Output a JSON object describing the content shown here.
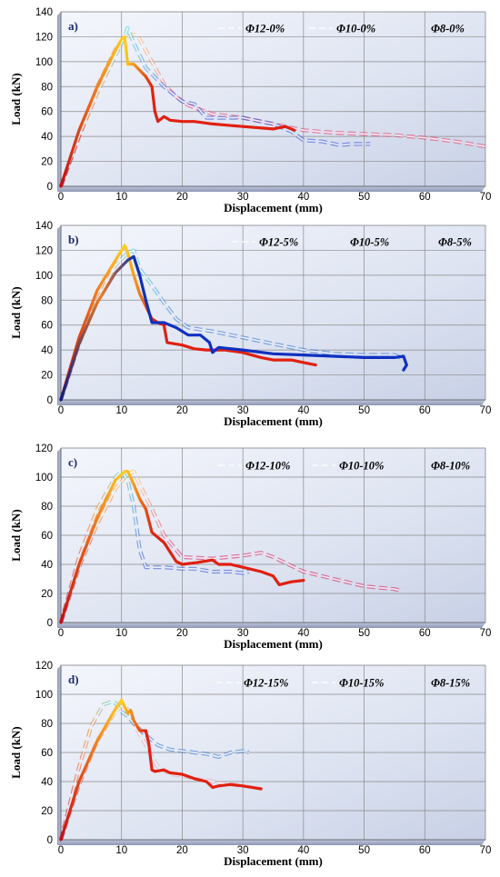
{
  "chart_data": [
    {
      "type": "line",
      "panel_label": "a)",
      "xlabel": "Displacement (mm)",
      "ylabel": "Load (kN)",
      "xlim": [
        0,
        70
      ],
      "ylim": [
        0,
        140
      ],
      "xticks": [
        0,
        10,
        20,
        30,
        40,
        50,
        60,
        70
      ],
      "yticks": [
        0,
        20,
        40,
        60,
        80,
        100,
        120,
        140
      ],
      "grid": true,
      "legend_position": "top-right",
      "series": [
        {
          "name": "Φ12-0%",
          "style": "dashed",
          "color_start": "#c01050",
          "color_peak": "#f0c070",
          "color_end": "#e03a6a",
          "x": [
            0,
            3,
            6,
            9,
            11,
            12,
            13,
            15,
            17,
            19,
            21,
            25,
            30,
            35,
            40,
            45,
            50,
            55,
            60,
            65,
            70
          ],
          "y": [
            0,
            40,
            80,
            110,
            120,
            122,
            118,
            100,
            82,
            72,
            65,
            58,
            55,
            50,
            45,
            43,
            42,
            41,
            39,
            36,
            32
          ]
        },
        {
          "name": "Φ10-0%",
          "style": "dashed",
          "color_start": "#c01050",
          "color_peak": "#40d0d0",
          "color_end": "#3050d0",
          "x": [
            0,
            3,
            6,
            9,
            10.5,
            11,
            12,
            14,
            17,
            20,
            22,
            24,
            26,
            30,
            35,
            38,
            40,
            43,
            46,
            48,
            51
          ],
          "y": [
            0,
            40,
            75,
            105,
            120,
            127,
            115,
            95,
            80,
            68,
            66,
            55,
            55,
            55,
            50,
            44,
            37,
            36,
            33,
            34,
            34
          ]
        },
        {
          "name": "Φ8-0%",
          "style": "solid",
          "color_start": "#c01010",
          "color_peak": "#ffd020",
          "color_end": "#e02010",
          "x": [
            0,
            3,
            6,
            8,
            10,
            10.5,
            11,
            12,
            14,
            15,
            15.5,
            16,
            17,
            18,
            20,
            22,
            25,
            30,
            35,
            37,
            38.5
          ],
          "y": [
            0,
            45,
            80,
            100,
            118,
            120,
            98,
            98,
            88,
            80,
            60,
            52,
            56,
            53,
            52,
            52,
            50,
            48,
            46,
            48,
            45
          ]
        }
      ]
    },
    {
      "type": "line",
      "panel_label": "b)",
      "xlabel": "Displacement (mm)",
      "ylabel": "Load (kN)",
      "xlim": [
        0,
        70
      ],
      "ylim": [
        0,
        140
      ],
      "xticks": [
        0,
        10,
        20,
        30,
        40,
        50,
        60,
        70
      ],
      "yticks": [
        0,
        20,
        40,
        60,
        80,
        100,
        120,
        140
      ],
      "grid": true,
      "legend_position": "top-right",
      "series": [
        {
          "name": "Φ12-5%",
          "style": "dashed",
          "color_start": "#1050c0",
          "color_peak": "#40d0e0",
          "color_end": "#3070d0",
          "x": [
            0,
            3,
            6,
            9,
            11,
            12,
            13,
            15,
            17,
            19,
            21,
            25,
            30,
            35,
            40,
            45,
            50,
            55,
            56
          ],
          "y": [
            0,
            45,
            80,
            108,
            118,
            120,
            105,
            92,
            78,
            65,
            58,
            55,
            50,
            45,
            40,
            37,
            36,
            36,
            34
          ]
        },
        {
          "name": "Φ10-5%",
          "style": "solid",
          "color_start": "#c01010",
          "color_peak": "#ffd020",
          "color_end": "#e02010",
          "x": [
            0,
            3,
            6,
            9,
            10.5,
            11,
            12,
            13,
            14,
            15,
            16,
            17,
            17.5,
            20,
            22,
            24,
            25,
            27,
            30,
            33,
            35,
            38,
            40,
            42
          ],
          "y": [
            0,
            50,
            88,
            112,
            124,
            118,
            100,
            85,
            75,
            65,
            62,
            60,
            46,
            44,
            41,
            40,
            40,
            40,
            38,
            34,
            32,
            32,
            30,
            28
          ]
        },
        {
          "name": "Φ8-5%",
          "style": "solid",
          "color_start": "#101a80",
          "color_peak": "#1030b0",
          "color_end": "#1030c0",
          "x": [
            0,
            3,
            6,
            9,
            11,
            12,
            13,
            14,
            15,
            17,
            19,
            21,
            23,
            24.5,
            25,
            26,
            30,
            35,
            40,
            45,
            50,
            55,
            56.5,
            57,
            56.5
          ],
          "y": [
            0,
            45,
            78,
            102,
            112,
            115,
            100,
            80,
            62,
            62,
            58,
            52,
            52,
            46,
            38,
            42,
            40,
            37,
            36,
            35,
            34,
            34,
            35,
            28,
            24
          ]
        }
      ]
    },
    {
      "type": "line",
      "panel_label": "c)",
      "xlabel": "Displacement (mm)",
      "ylabel": "Load (kN)",
      "xlim": [
        0,
        70
      ],
      "ylim": [
        0,
        120
      ],
      "xticks": [
        0,
        10,
        20,
        30,
        40,
        50,
        60,
        70
      ],
      "yticks": [
        0,
        20,
        40,
        60,
        80,
        100,
        120
      ],
      "grid": true,
      "legend_position": "top-right",
      "series": [
        {
          "name": "Φ12-10%",
          "style": "dashed",
          "color_start": "#c01050",
          "color_peak": "#f0c070",
          "color_end": "#d02060",
          "x": [
            0,
            3,
            6,
            9,
            11,
            12,
            13,
            15,
            17,
            20,
            25,
            30,
            33,
            35,
            40,
            45,
            50,
            55,
            56
          ],
          "y": [
            0,
            38,
            68,
            92,
            102,
            104,
            95,
            78,
            60,
            45,
            44,
            46,
            48,
            45,
            35,
            30,
            25,
            23,
            22
          ]
        },
        {
          "name": "Φ10-10%",
          "style": "dashed",
          "color_start": "#c01050",
          "color_peak": "#40d0d0",
          "color_end": "#3050d0",
          "x": [
            0,
            3,
            6,
            9,
            10,
            11,
            12,
            13,
            14,
            17,
            20,
            22,
            25,
            28,
            30,
            31
          ],
          "y": [
            0,
            45,
            78,
            100,
            104,
            98,
            80,
            50,
            38,
            38,
            37,
            37,
            35,
            35,
            34,
            35
          ]
        },
        {
          "name": "Φ8-10%",
          "style": "solid",
          "color_start": "#c01010",
          "color_peak": "#ffd020",
          "color_end": "#e02010",
          "x": [
            0,
            3,
            6,
            9,
            10.5,
            11,
            12,
            13,
            14,
            15,
            17,
            19,
            20,
            22,
            25,
            26,
            28,
            30,
            33,
            35,
            36,
            37,
            38,
            40
          ],
          "y": [
            0,
            40,
            72,
            98,
            104,
            104,
            95,
            85,
            78,
            62,
            55,
            42,
            40,
            41,
            43,
            40,
            40,
            38,
            35,
            32,
            26,
            27,
            28,
            29
          ]
        }
      ]
    },
    {
      "type": "line",
      "panel_label": "d)",
      "xlabel": "Displacement (mm)",
      "ylabel": "Load (kN)",
      "xlim": [
        0,
        70
      ],
      "ylim": [
        0,
        120
      ],
      "xticks": [
        0,
        10,
        20,
        30,
        40,
        50,
        60,
        70
      ],
      "yticks": [
        0,
        20,
        40,
        60,
        80,
        100,
        120
      ],
      "grid": true,
      "legend_position": "top-right",
      "series": [
        {
          "name": "Φ12-15%",
          "style": "dashed",
          "color_start": "#c01050",
          "color_peak": "#f0c070",
          "color_end": "#e0a0b0",
          "x": [
            0,
            3,
            6,
            9,
            10,
            11,
            12,
            14,
            16,
            18,
            20,
            22,
            25,
            28,
            30
          ],
          "y": [
            0,
            38,
            68,
            88,
            92,
            90,
            80,
            65,
            50,
            45,
            44,
            42,
            40,
            38,
            37
          ]
        },
        {
          "name": "Φ10-15%",
          "style": "dashed",
          "color_start": "#c01050",
          "color_peak": "#40d0d0",
          "color_end": "#3070d0",
          "x": [
            0,
            3,
            5,
            7,
            8.5,
            9,
            10,
            11,
            12,
            14,
            16,
            18,
            20,
            22,
            24,
            26,
            28,
            30,
            31
          ],
          "y": [
            0,
            50,
            78,
            93,
            95,
            94,
            88,
            85,
            80,
            72,
            65,
            62,
            61,
            60,
            59,
            57,
            60,
            61,
            60
          ]
        },
        {
          "name": "Φ8-15%",
          "style": "solid",
          "color_start": "#c01010",
          "color_peak": "#ffd020",
          "color_end": "#e02010",
          "x": [
            0,
            3,
            6,
            9,
            10,
            11,
            11.5,
            12,
            13,
            14,
            14.5,
            15,
            15.5,
            17,
            18,
            20,
            22,
            24,
            25,
            26,
            28,
            30,
            33
          ],
          "y": [
            0,
            40,
            68,
            90,
            96,
            87,
            89,
            82,
            75,
            75,
            66,
            48,
            47,
            48,
            46,
            45,
            42,
            40,
            36,
            37,
            38,
            37,
            35
          ]
        }
      ]
    }
  ]
}
